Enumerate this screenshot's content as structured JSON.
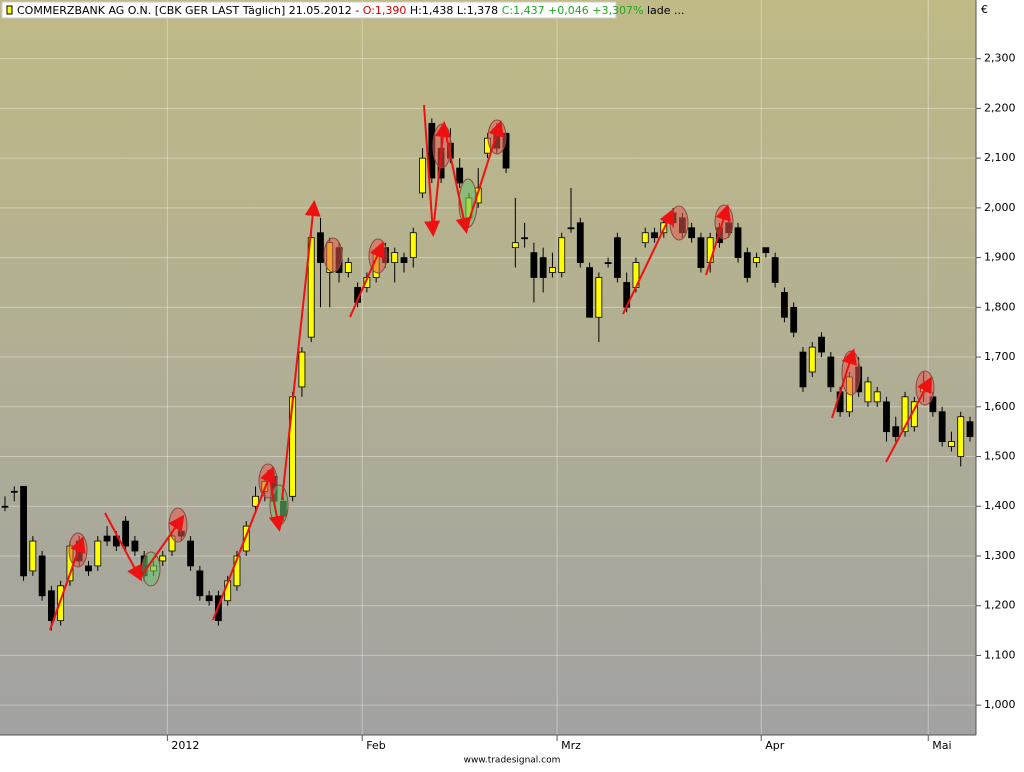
{
  "chart_data": {
    "type": "candlestick",
    "title": "COMMERZBANK AG O.N. [CBK GER LAST Täglich] 21.05.2012 -",
    "quote_open": "O:1,390",
    "quote_range": "H:1,438 L:1,378",
    "quote_close": "C:1,437 +0,046 +3,307%",
    "status": "lade ...",
    "y_unit": "€",
    "footer": "www.tradesignal.com",
    "categories": [
      null,
      null,
      null,
      null,
      null,
      null,
      null,
      null,
      null,
      null,
      null,
      null,
      null,
      null,
      null,
      null,
      null,
      null,
      "2012",
      null,
      null,
      null,
      null,
      null,
      null,
      null,
      null,
      null,
      null,
      null,
      null,
      null,
      null,
      null,
      null,
      null,
      null,
      null,
      null,
      "Feb",
      null,
      null,
      null,
      null,
      null,
      null,
      null,
      null,
      null,
      null,
      null,
      null,
      null,
      null,
      null,
      null,
      null,
      null,
      null,
      null,
      "Mrz",
      null,
      null,
      null,
      null,
      null,
      null,
      null,
      null,
      null,
      null,
      null,
      null,
      null,
      null,
      null,
      null,
      null,
      null,
      null,
      null,
      null,
      "Apr",
      null,
      null,
      null,
      null,
      null,
      null,
      null,
      null,
      null,
      null,
      null,
      null,
      null,
      null,
      null,
      null,
      null,
      "Mai",
      null,
      null,
      null,
      null
    ],
    "series": {
      "open": [
        1.4,
        1.43,
        1.44,
        1.27,
        1.3,
        1.23,
        1.17,
        1.25,
        1.33,
        1.28,
        1.28,
        1.34,
        1.34,
        1.37,
        1.33,
        1.3,
        1.27,
        1.29,
        1.31,
        1.35,
        1.33,
        1.27,
        1.22,
        1.22,
        1.21,
        1.24,
        1.31,
        1.4,
        1.43,
        1.46,
        1.41,
        1.42,
        1.64,
        1.74,
        1.95,
        1.87,
        1.92,
        1.87,
        1.84,
        1.84,
        1.86,
        1.92,
        1.89,
        1.9,
        1.9,
        2.03,
        2.17,
        2.12,
        2.13,
        2.08,
        1.98,
        2.01,
        2.11,
        2.16,
        2.15,
        1.92,
        1.94,
        1.91,
        1.9,
        1.87,
        1.87,
        1.96,
        1.97,
        1.88,
        1.78,
        1.89,
        1.94,
        1.85,
        1.84,
        1.93,
        1.95,
        1.95,
        1.99,
        1.98,
        1.96,
        1.94,
        1.89,
        1.96,
        1.97,
        1.96,
        1.91,
        1.89,
        1.92,
        1.9,
        1.83,
        1.8,
        1.71,
        1.67,
        1.74,
        1.7,
        1.63,
        1.59,
        1.68,
        1.61,
        1.61,
        1.61,
        1.56,
        1.55,
        1.56,
        1.63,
        1.62,
        1.59,
        1.52,
        1.5,
        1.57
      ],
      "high": [
        1.42,
        1.44,
        1.44,
        1.34,
        1.31,
        1.24,
        1.25,
        1.33,
        1.34,
        1.29,
        1.34,
        1.36,
        1.35,
        1.38,
        1.34,
        1.31,
        1.29,
        1.31,
        1.35,
        1.36,
        1.34,
        1.28,
        1.23,
        1.23,
        1.26,
        1.31,
        1.37,
        1.44,
        1.46,
        1.47,
        1.42,
        1.63,
        1.72,
        1.95,
        1.98,
        1.94,
        1.93,
        1.9,
        1.85,
        1.87,
        1.92,
        1.93,
        1.92,
        1.91,
        1.96,
        2.12,
        2.18,
        2.15,
        2.16,
        2.1,
        2.03,
        2.08,
        2.15,
        2.17,
        2.15,
        2.02,
        1.97,
        1.93,
        1.92,
        1.91,
        1.95,
        2.04,
        1.98,
        1.89,
        1.87,
        1.9,
        1.95,
        1.87,
        1.9,
        1.96,
        1.96,
        1.98,
        2.0,
        1.99,
        1.97,
        1.95,
        1.95,
        1.97,
        1.98,
        1.97,
        1.92,
        1.91,
        1.92,
        1.91,
        1.84,
        1.81,
        1.72,
        1.73,
        1.75,
        1.71,
        1.64,
        1.67,
        1.7,
        1.66,
        1.64,
        1.62,
        1.58,
        1.63,
        1.62,
        1.67,
        1.63,
        1.6,
        1.55,
        1.59,
        1.58
      ],
      "low": [
        1.39,
        1.41,
        1.25,
        1.26,
        1.21,
        1.15,
        1.16,
        1.24,
        1.28,
        1.26,
        1.27,
        1.32,
        1.31,
        1.31,
        1.3,
        1.25,
        1.26,
        1.28,
        1.3,
        1.33,
        1.27,
        1.21,
        1.2,
        1.16,
        1.2,
        1.23,
        1.3,
        1.39,
        1.41,
        1.4,
        1.37,
        1.41,
        1.62,
        1.73,
        1.8,
        1.8,
        1.85,
        1.86,
        1.8,
        1.83,
        1.85,
        1.88,
        1.85,
        1.87,
        1.88,
        2.02,
        2.05,
        2.05,
        2.09,
        2.04,
        1.96,
        2.0,
        2.1,
        2.11,
        2.07,
        1.88,
        1.92,
        1.81,
        1.83,
        1.86,
        1.86,
        1.95,
        1.88,
        1.78,
        1.73,
        1.88,
        1.85,
        1.79,
        1.83,
        1.92,
        1.93,
        1.94,
        1.96,
        1.94,
        1.93,
        1.87,
        1.87,
        1.92,
        1.94,
        1.89,
        1.85,
        1.88,
        1.9,
        1.84,
        1.77,
        1.74,
        1.63,
        1.66,
        1.7,
        1.63,
        1.58,
        1.58,
        1.62,
        1.6,
        1.6,
        1.53,
        1.53,
        1.54,
        1.55,
        1.61,
        1.58,
        1.52,
        1.51,
        1.48,
        1.53
      ],
      "close": [
        1.4,
        1.43,
        1.26,
        1.33,
        1.22,
        1.17,
        1.24,
        1.32,
        1.29,
        1.27,
        1.33,
        1.33,
        1.32,
        1.32,
        1.31,
        1.26,
        1.28,
        1.3,
        1.34,
        1.34,
        1.28,
        1.22,
        1.21,
        1.17,
        1.25,
        1.3,
        1.36,
        1.42,
        1.45,
        1.41,
        1.38,
        1.62,
        1.71,
        1.94,
        1.89,
        1.93,
        1.87,
        1.89,
        1.81,
        1.86,
        1.91,
        1.89,
        1.91,
        1.89,
        1.95,
        2.1,
        2.06,
        2.06,
        2.1,
        2.05,
        2.02,
        2.04,
        2.14,
        2.12,
        2.08,
        1.93,
        1.94,
        1.86,
        1.86,
        1.88,
        1.94,
        1.96,
        1.89,
        1.78,
        1.86,
        1.89,
        1.86,
        1.8,
        1.89,
        1.95,
        1.94,
        1.97,
        1.97,
        1.95,
        1.94,
        1.88,
        1.94,
        1.93,
        1.95,
        1.9,
        1.86,
        1.9,
        1.91,
        1.85,
        1.78,
        1.75,
        1.64,
        1.72,
        1.71,
        1.64,
        1.59,
        1.66,
        1.63,
        1.65,
        1.63,
        1.55,
        1.54,
        1.62,
        1.61,
        1.64,
        1.59,
        1.53,
        1.53,
        1.58,
        1.54
      ]
    },
    "up_color": "#ffff00",
    "down_color": "#000000",
    "ylim": [
      0.94,
      2.418
    ],
    "yticks": [
      {
        "value": 1.0,
        "label": "1,000"
      },
      {
        "value": 1.1,
        "label": "1,100"
      },
      {
        "value": 1.2,
        "label": "1,200"
      },
      {
        "value": 1.3,
        "label": "1,300"
      },
      {
        "value": 1.4,
        "label": "1,400"
      },
      {
        "value": 1.5,
        "label": "1,500"
      },
      {
        "value": 1.6,
        "label": "1,600"
      },
      {
        "value": 1.7,
        "label": "1,700"
      },
      {
        "value": 1.8,
        "label": "1,800"
      },
      {
        "value": 1.9,
        "label": "1,900"
      },
      {
        "value": 2.0,
        "label": "2,000"
      },
      {
        "value": 2.1,
        "label": "2,100"
      },
      {
        "value": 2.2,
        "label": "2,200"
      },
      {
        "value": 2.3,
        "label": "2,300"
      }
    ],
    "grid": true
  }
}
